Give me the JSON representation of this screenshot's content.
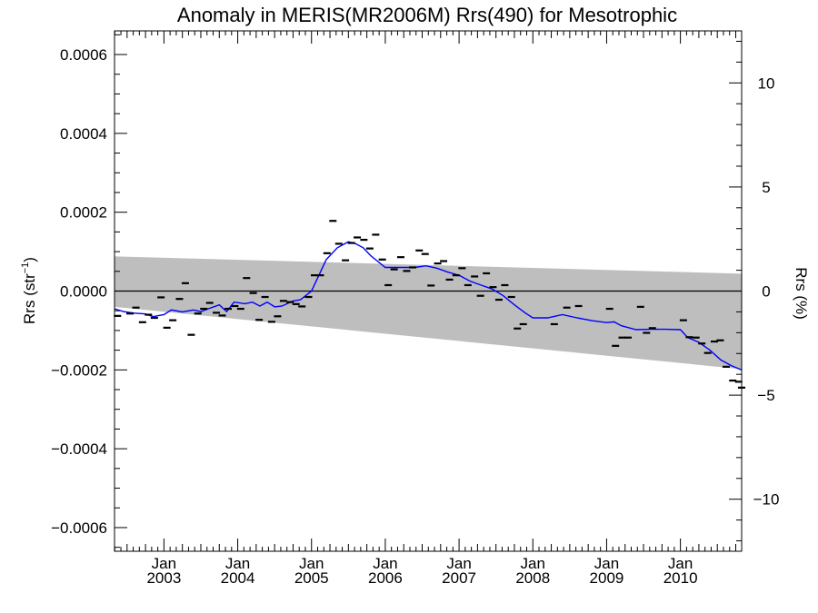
{
  "chart_data": {
    "type": "line",
    "title": "Anomaly in MERIS(MR2006M) Rrs(490) for Mesotrophic",
    "ylabel_left": {
      "base": "Rrs (str",
      "sup": "−1",
      "end": ")"
    },
    "ylabel_right": "Rrs (%)",
    "xlim": [
      2002.33,
      2010.83
    ],
    "ylim_left": [
      -0.00066,
      0.00066
    ],
    "ylim_right": [
      -12.5,
      12.5
    ],
    "x_ticks": [
      {
        "x": 2003.0,
        "month": "Jan",
        "year": "2003"
      },
      {
        "x": 2004.0,
        "month": "Jan",
        "year": "2004"
      },
      {
        "x": 2005.0,
        "month": "Jan",
        "year": "2005"
      },
      {
        "x": 2006.0,
        "month": "Jan",
        "year": "2006"
      },
      {
        "x": 2007.0,
        "month": "Jan",
        "year": "2007"
      },
      {
        "x": 2008.0,
        "month": "Jan",
        "year": "2008"
      },
      {
        "x": 2009.0,
        "month": "Jan",
        "year": "2009"
      },
      {
        "x": 2010.0,
        "month": "Jan",
        "year": "2010"
      }
    ],
    "y_ticks_left": [
      {
        "v": 0.0006,
        "label": "0.0006"
      },
      {
        "v": 0.0004,
        "label": "0.0004"
      },
      {
        "v": 0.0002,
        "label": "0.0002"
      },
      {
        "v": 0.0,
        "label": "0.0000"
      },
      {
        "v": -0.0002,
        "label": "−0.0002"
      },
      {
        "v": -0.0004,
        "label": "−0.0004"
      },
      {
        "v": -0.0006,
        "label": "−0.0006"
      }
    ],
    "y_ticks_right": [
      {
        "v": 10,
        "label": "10"
      },
      {
        "v": 5,
        "label": "5"
      },
      {
        "v": 0,
        "label": "0"
      },
      {
        "v": -5,
        "label": "−5"
      },
      {
        "v": -10,
        "label": "−10"
      }
    ],
    "zero_line": 0.0,
    "uncertainty_band": {
      "color": "#bebebe",
      "x": [
        2002.33,
        2010.83
      ],
      "upper": [
        8.8e-05,
        4.4e-05
      ],
      "lower": [
        -4e-05,
        -0.000198
      ]
    },
    "series": [
      {
        "kind": "monthly_points",
        "color": "#000000",
        "x": [
          2002.37,
          2002.54,
          2002.62,
          2002.71,
          2002.79,
          2002.87,
          2002.96,
          2003.04,
          2003.12,
          2003.21,
          2003.29,
          2003.37,
          2003.46,
          2003.54,
          2003.62,
          2003.71,
          2003.79,
          2003.87,
          2003.96,
          2004.04,
          2004.12,
          2004.21,
          2004.29,
          2004.37,
          2004.46,
          2004.54,
          2004.62,
          2004.71,
          2004.79,
          2004.87,
          2004.96,
          2005.04,
          2005.12,
          2005.21,
          2005.29,
          2005.37,
          2005.46,
          2005.54,
          2005.62,
          2005.71,
          2005.79,
          2005.87,
          2005.96,
          2006.04,
          2006.12,
          2006.21,
          2006.29,
          2006.37,
          2006.46,
          2006.54,
          2006.62,
          2006.71,
          2006.79,
          2006.87,
          2006.96,
          2007.04,
          2007.12,
          2007.21,
          2007.29,
          2007.37,
          2007.46,
          2007.54,
          2007.62,
          2007.71,
          2007.79,
          2007.87,
          2008.29,
          2008.46,
          2008.62,
          2009.04,
          2009.12,
          2009.21,
          2009.29,
          2009.46,
          2009.54,
          2009.62,
          2010.04,
          2010.12,
          2010.21,
          2010.29,
          2010.37,
          2010.46,
          2010.54,
          2010.62,
          2010.71,
          2010.79,
          2010.83
        ],
        "y": [
          -6.3e-05,
          -5.7e-05,
          -4.2e-05,
          -7.9e-05,
          -6e-05,
          -6.8e-05,
          -1.6e-05,
          -9.3e-05,
          -7.4e-05,
          -2e-05,
          2e-05,
          -0.000111,
          -5.7e-05,
          -4.5e-05,
          -3e-05,
          -5.5e-05,
          -6.2e-05,
          -4.5e-05,
          -3.8e-05,
          -4.5e-05,
          3.3e-05,
          -5e-06,
          -7.3e-05,
          -1.5e-05,
          -7.8e-05,
          -6.4e-05,
          -2.5e-05,
          -2.8e-05,
          -3.3e-05,
          -3.9e-05,
          -1.5e-05,
          4e-05,
          4e-05,
          9.6e-05,
          0.000178,
          0.00012,
          7.8e-05,
          0.000122,
          0.000136,
          0.00013,
          0.000108,
          0.000143,
          8e-05,
          1.5e-05,
          5.5e-05,
          8.6e-05,
          5.1e-05,
          6e-05,
          0.000103,
          9.4e-05,
          1.4e-05,
          7e-05,
          7.6e-05,
          2.9e-05,
          4e-05,
          5.8e-05,
          1.5e-05,
          3.7e-05,
          -1.2e-05,
          4.5e-05,
          1e-05,
          -2.2e-05,
          1.5e-05,
          -1.5e-05,
          -9.5e-05,
          -8.4e-05,
          -8.4e-05,
          -4.2e-05,
          -3.8e-05,
          -4.5e-05,
          -0.000139,
          -0.000118,
          -0.000118,
          -4e-05,
          -0.000106,
          -9.4e-05,
          -7.4e-05,
          -0.000117,
          -0.000118,
          -0.000133,
          -0.000157,
          -0.000128,
          -0.000125,
          -0.000192,
          -0.000227,
          -0.00023,
          -0.000245
        ]
      },
      {
        "kind": "running_mean",
        "color": "#0000ff",
        "x": [
          2002.33,
          2002.45,
          2002.6,
          2002.75,
          2002.85,
          2003.0,
          2003.1,
          2003.25,
          2003.4,
          2003.5,
          2003.6,
          2003.75,
          2003.85,
          2003.95,
          2004.1,
          2004.2,
          2004.3,
          2004.4,
          2004.5,
          2004.6,
          2004.75,
          2004.85,
          2005.0,
          2005.1,
          2005.2,
          2005.35,
          2005.5,
          2005.6,
          2005.7,
          2005.8,
          2006.0,
          2006.2,
          2006.4,
          2006.55,
          2006.7,
          2006.85,
          2007.0,
          2007.15,
          2007.3,
          2007.45,
          2007.6,
          2007.75,
          2007.9,
          2008.0,
          2008.2,
          2008.4,
          2008.6,
          2008.8,
          2009.0,
          2009.1,
          2009.2,
          2009.4,
          2009.6,
          2009.8,
          2010.0,
          2010.1,
          2010.25,
          2010.4,
          2010.55,
          2010.7,
          2010.83
        ],
        "y": [
          -4.5e-05,
          -5.2e-05,
          -5.6e-05,
          -5.8e-05,
          -6.5e-05,
          -6e-05,
          -4.8e-05,
          -5.3e-05,
          -4.8e-05,
          -5.2e-05,
          -4.5e-05,
          -3.5e-05,
          -5.2e-05,
          -2.8e-05,
          -3.2e-05,
          -2.8e-05,
          -3.8e-05,
          -2.8e-05,
          -4e-05,
          -3.8e-05,
          -2.5e-05,
          -2.2e-05,
          0.0,
          4e-05,
          8e-05,
          0.00011,
          0.000125,
          0.00012,
          0.00011,
          9e-05,
          6e-05,
          6e-05,
          6e-05,
          6.4e-05,
          5.8e-05,
          4.8e-05,
          4e-05,
          2.5e-05,
          1.5e-05,
          5e-06,
          -1.2e-05,
          -3.5e-05,
          -5.6e-05,
          -6.8e-05,
          -6.8e-05,
          -6e-05,
          -6.8e-05,
          -7.5e-05,
          -8e-05,
          -7.8e-05,
          -8.8e-05,
          -9.8e-05,
          -9.7e-05,
          -9.7e-05,
          -9.8e-05,
          -0.000118,
          -0.00013,
          -0.00015,
          -0.000175,
          -0.00019,
          -0.0002
        ]
      }
    ]
  }
}
